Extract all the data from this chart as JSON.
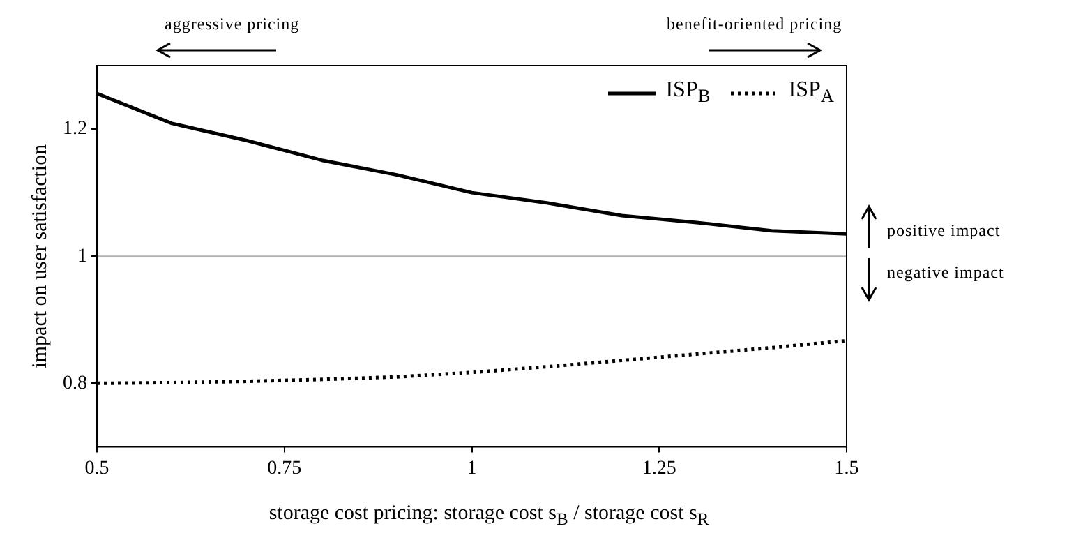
{
  "chart_data": {
    "type": "line",
    "xlabel": "storage cost pricing: storage cost s$_{B}$ / storage cost s$_{R}$",
    "ylabel": "impact on user satisfaction",
    "x": [
      0.5,
      0.6,
      0.7,
      0.8,
      0.9,
      1.0,
      1.1,
      1.2,
      1.3,
      1.4,
      1.5
    ],
    "series": [
      {
        "name": "ISP$_{B}$",
        "color": "#000000",
        "line_style": "solid",
        "values": [
          1.256,
          1.209,
          1.182,
          1.151,
          1.128,
          1.1,
          1.084,
          1.064,
          1.053,
          1.04,
          1.035
        ]
      },
      {
        "name": "ISP$_{A}$",
        "color": "#000000",
        "line_style": "dotted",
        "values": [
          0.8,
          0.801,
          0.803,
          0.806,
          0.81,
          0.817,
          0.826,
          0.836,
          0.846,
          0.856,
          0.867
        ]
      }
    ],
    "xlim": [
      0.5,
      1.5
    ],
    "xticks": [
      0.5,
      0.75,
      1,
      1.25,
      1.5
    ],
    "ylim": [
      0.7,
      1.3
    ],
    "yticks": [
      0.8,
      1,
      1.2
    ],
    "ref_lines": [
      {
        "axis": "y",
        "value": 1,
        "color": "#b0b0b0"
      }
    ],
    "annotations": [
      "aggressive pricing",
      "benefit-oriented pricing",
      "positive impact",
      "negative impact"
    ],
    "grid": false,
    "legend": "top right"
  }
}
